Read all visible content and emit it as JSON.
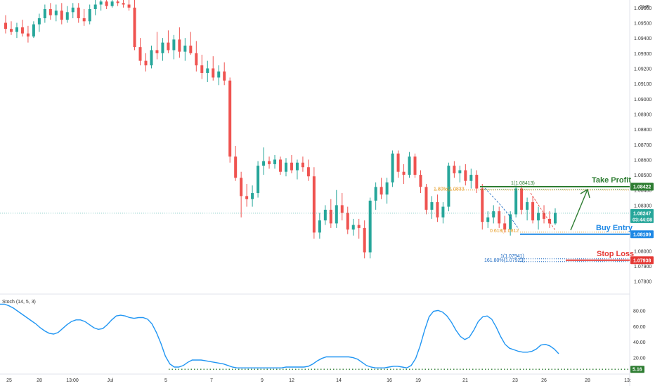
{
  "currency": "CHF",
  "colors": {
    "up": "#26a69a",
    "down": "#ef5350",
    "take_profit": "#2e7d32",
    "buy_entry": "#1e88e5",
    "stop_loss": "#e53935",
    "stoch_line": "#2196f3",
    "current_price": "#26a69a",
    "fib_orange": "#e69a1f",
    "fib_blue": "#1565c0"
  },
  "price_axis": {
    "ticks": [
      "1.09600",
      "1.09500",
      "1.09400",
      "1.09300",
      "1.09200",
      "1.09100",
      "1.09000",
      "1.08900",
      "1.08800",
      "1.08700",
      "1.08600",
      "1.08500",
      "1.08400",
      "1.08300",
      "1.08200",
      "1.08100",
      "1.08000",
      "1.07900",
      "1.07800"
    ]
  },
  "time_axis": {
    "labels": [
      "25",
      "28",
      "13:00",
      "Jul",
      "5",
      "7",
      "9",
      "12",
      "14",
      "16",
      "19",
      "21",
      "23",
      "26",
      "28",
      "13:"
    ]
  },
  "levels": {
    "take_profit": {
      "label": "Take Profit",
      "price": "1.08422"
    },
    "buy_entry": {
      "label": "Buy Entry",
      "price": "1.08109"
    },
    "stop_loss": {
      "label": "Stop Loss",
      "price": "1.07938"
    },
    "current": {
      "price": "1.08247",
      "countdown": "03:44:08"
    }
  },
  "fib_labels": {
    "tp_fib": "1(1.08413)",
    "orange_fib": "1.80%(1.0833",
    "entry_fib": "0.618(1.0812",
    "sl_fib_top": "1(1.07941)",
    "sl_fib": "161.80%(1.07923)"
  },
  "stochastic": {
    "title": "Stoch (14, 5, 3)",
    "ticks": [
      "80.00",
      "60.00",
      "40.00",
      "20.00"
    ],
    "current": "5.16",
    "range": [
      0,
      100
    ]
  },
  "chart_data": {
    "type": "candlestick",
    "title": "",
    "ylim": [
      1.0772,
      1.0965
    ],
    "candles": [
      {
        "o": 1.095,
        "h": 1.0955,
        "l": 1.0943,
        "c": 1.0946
      },
      {
        "o": 1.0946,
        "h": 1.0951,
        "l": 1.0942,
        "c": 1.0944
      },
      {
        "o": 1.0944,
        "h": 1.095,
        "l": 1.094,
        "c": 1.0947
      },
      {
        "o": 1.0947,
        "h": 1.0952,
        "l": 1.0941,
        "c": 1.0943
      },
      {
        "o": 1.0943,
        "h": 1.0948,
        "l": 1.0937,
        "c": 1.0941
      },
      {
        "o": 1.0941,
        "h": 1.0951,
        "l": 1.094,
        "c": 1.0949
      },
      {
        "o": 1.0949,
        "h": 1.0956,
        "l": 1.0944,
        "c": 1.0953
      },
      {
        "o": 1.0953,
        "h": 1.0962,
        "l": 1.095,
        "c": 1.0959
      },
      {
        "o": 1.0959,
        "h": 1.0963,
        "l": 1.0952,
        "c": 1.0955
      },
      {
        "o": 1.0955,
        "h": 1.0962,
        "l": 1.0951,
        "c": 1.0958
      },
      {
        "o": 1.0958,
        "h": 1.0963,
        "l": 1.0949,
        "c": 1.0952
      },
      {
        "o": 1.0952,
        "h": 1.0961,
        "l": 1.095,
        "c": 1.0957
      },
      {
        "o": 1.0957,
        "h": 1.0963,
        "l": 1.0953,
        "c": 1.096
      },
      {
        "o": 1.096,
        "h": 1.0963,
        "l": 1.095,
        "c": 1.0953
      },
      {
        "o": 1.0953,
        "h": 1.0959,
        "l": 1.0948,
        "c": 1.0951
      },
      {
        "o": 1.0951,
        "h": 1.0962,
        "l": 1.0949,
        "c": 1.0959
      },
      {
        "o": 1.0959,
        "h": 1.0966,
        "l": 1.0955,
        "c": 1.0962
      },
      {
        "o": 1.0962,
        "h": 1.0966,
        "l": 1.0958,
        "c": 1.0964
      },
      {
        "o": 1.0964,
        "h": 1.0966,
        "l": 1.0959,
        "c": 1.0961
      },
      {
        "o": 1.0961,
        "h": 1.0966,
        "l": 1.096,
        "c": 1.0964
      },
      {
        "o": 1.0964,
        "h": 1.0966,
        "l": 1.0961,
        "c": 1.0963
      },
      {
        "o": 1.0963,
        "h": 1.0966,
        "l": 1.096,
        "c": 1.0962
      },
      {
        "o": 1.0962,
        "h": 1.0966,
        "l": 1.0958,
        "c": 1.096
      },
      {
        "o": 1.096,
        "h": 1.0966,
        "l": 1.0932,
        "c": 1.0934
      },
      {
        "o": 1.0934,
        "h": 1.094,
        "l": 1.0922,
        "c": 1.0925
      },
      {
        "o": 1.0925,
        "h": 1.093,
        "l": 1.0918,
        "c": 1.0922
      },
      {
        "o": 1.0922,
        "h": 1.0935,
        "l": 1.092,
        "c": 1.0932
      },
      {
        "o": 1.0932,
        "h": 1.0944,
        "l": 1.0926,
        "c": 1.093
      },
      {
        "o": 1.093,
        "h": 1.094,
        "l": 1.0925,
        "c": 1.0937
      },
      {
        "o": 1.0937,
        "h": 1.0945,
        "l": 1.093,
        "c": 1.0932
      },
      {
        "o": 1.0932,
        "h": 1.0942,
        "l": 1.0926,
        "c": 1.0939
      },
      {
        "o": 1.0939,
        "h": 1.0947,
        "l": 1.0927,
        "c": 1.0931
      },
      {
        "o": 1.0931,
        "h": 1.094,
        "l": 1.0925,
        "c": 1.0935
      },
      {
        "o": 1.0935,
        "h": 1.0944,
        "l": 1.0929,
        "c": 1.093
      },
      {
        "o": 1.093,
        "h": 1.0938,
        "l": 1.0918,
        "c": 1.0922
      },
      {
        "o": 1.0922,
        "h": 1.0929,
        "l": 1.0913,
        "c": 1.0917
      },
      {
        "o": 1.0917,
        "h": 1.0925,
        "l": 1.0911,
        "c": 1.092
      },
      {
        "o": 1.092,
        "h": 1.0928,
        "l": 1.0912,
        "c": 1.0914
      },
      {
        "o": 1.0914,
        "h": 1.0922,
        "l": 1.0909,
        "c": 1.0918
      },
      {
        "o": 1.0918,
        "h": 1.0924,
        "l": 1.0909,
        "c": 1.0912
      },
      {
        "o": 1.0912,
        "h": 1.0914,
        "l": 1.0858,
        "c": 1.0862
      },
      {
        "o": 1.0862,
        "h": 1.0869,
        "l": 1.0846,
        "c": 1.0848
      },
      {
        "o": 1.0848,
        "h": 1.0852,
        "l": 1.0822,
        "c": 1.0836
      },
      {
        "o": 1.0836,
        "h": 1.0844,
        "l": 1.0829,
        "c": 1.0834
      },
      {
        "o": 1.0834,
        "h": 1.0843,
        "l": 1.0829,
        "c": 1.0838
      },
      {
        "o": 1.0838,
        "h": 1.0859,
        "l": 1.0835,
        "c": 1.0856
      },
      {
        "o": 1.0856,
        "h": 1.0868,
        "l": 1.085,
        "c": 1.0859
      },
      {
        "o": 1.0859,
        "h": 1.0862,
        "l": 1.0854,
        "c": 1.0857
      },
      {
        "o": 1.0857,
        "h": 1.0863,
        "l": 1.0854,
        "c": 1.086
      },
      {
        "o": 1.086,
        "h": 1.0862,
        "l": 1.085,
        "c": 1.0852
      },
      {
        "o": 1.0852,
        "h": 1.0861,
        "l": 1.0849,
        "c": 1.0858
      },
      {
        "o": 1.0858,
        "h": 1.0863,
        "l": 1.0851,
        "c": 1.0853
      },
      {
        "o": 1.0853,
        "h": 1.086,
        "l": 1.0847,
        "c": 1.0858
      },
      {
        "o": 1.0858,
        "h": 1.0862,
        "l": 1.0852,
        "c": 1.0855
      },
      {
        "o": 1.0855,
        "h": 1.086,
        "l": 1.0846,
        "c": 1.0849
      },
      {
        "o": 1.0849,
        "h": 1.0855,
        "l": 1.0808,
        "c": 1.0812
      },
      {
        "o": 1.0812,
        "h": 1.0825,
        "l": 1.0808,
        "c": 1.082
      },
      {
        "o": 1.082,
        "h": 1.083,
        "l": 1.0817,
        "c": 1.0827
      },
      {
        "o": 1.0827,
        "h": 1.0834,
        "l": 1.0815,
        "c": 1.0818
      },
      {
        "o": 1.0818,
        "h": 1.084,
        "l": 1.0815,
        "c": 1.083
      },
      {
        "o": 1.083,
        "h": 1.0838,
        "l": 1.082,
        "c": 1.0825
      },
      {
        "o": 1.0825,
        "h": 1.0829,
        "l": 1.0811,
        "c": 1.0814
      },
      {
        "o": 1.0814,
        "h": 1.0821,
        "l": 1.081,
        "c": 1.0817
      },
      {
        "o": 1.0817,
        "h": 1.0821,
        "l": 1.0808,
        "c": 1.0815
      },
      {
        "o": 1.0815,
        "h": 1.082,
        "l": 1.0795,
        "c": 1.0799
      },
      {
        "o": 1.0799,
        "h": 1.0835,
        "l": 1.0795,
        "c": 1.0833
      },
      {
        "o": 1.0833,
        "h": 1.0845,
        "l": 1.0827,
        "c": 1.0842
      },
      {
        "o": 1.0842,
        "h": 1.0848,
        "l": 1.0834,
        "c": 1.0837
      },
      {
        "o": 1.0837,
        "h": 1.0848,
        "l": 1.0831,
        "c": 1.0845
      },
      {
        "o": 1.0845,
        "h": 1.0866,
        "l": 1.0842,
        "c": 1.0864
      },
      {
        "o": 1.0864,
        "h": 1.0866,
        "l": 1.0848,
        "c": 1.0852
      },
      {
        "o": 1.0852,
        "h": 1.0857,
        "l": 1.0844,
        "c": 1.085
      },
      {
        "o": 1.085,
        "h": 1.0865,
        "l": 1.0848,
        "c": 1.0862
      },
      {
        "o": 1.0862,
        "h": 1.0864,
        "l": 1.0848,
        "c": 1.085
      },
      {
        "o": 1.085,
        "h": 1.0853,
        "l": 1.0838,
        "c": 1.0842
      },
      {
        "o": 1.0842,
        "h": 1.0844,
        "l": 1.0824,
        "c": 1.0827
      },
      {
        "o": 1.0827,
        "h": 1.0836,
        "l": 1.0821,
        "c": 1.0832
      },
      {
        "o": 1.0832,
        "h": 1.0837,
        "l": 1.0819,
        "c": 1.0822
      },
      {
        "o": 1.0822,
        "h": 1.0832,
        "l": 1.0818,
        "c": 1.0829
      },
      {
        "o": 1.0829,
        "h": 1.0858,
        "l": 1.0826,
        "c": 1.0856
      },
      {
        "o": 1.0856,
        "h": 1.0859,
        "l": 1.0848,
        "c": 1.0851
      },
      {
        "o": 1.0851,
        "h": 1.0856,
        "l": 1.0845,
        "c": 1.0853
      },
      {
        "o": 1.0853,
        "h": 1.0857,
        "l": 1.0843,
        "c": 1.0846
      },
      {
        "o": 1.0846,
        "h": 1.0854,
        "l": 1.0841,
        "c": 1.085
      },
      {
        "o": 1.085,
        "h": 1.0853,
        "l": 1.0838,
        "c": 1.0841
      },
      {
        "o": 1.0841,
        "h": 1.0844,
        "l": 1.0814,
        "c": 1.0819
      },
      {
        "o": 1.0819,
        "h": 1.0826,
        "l": 1.0815,
        "c": 1.0822
      },
      {
        "o": 1.0822,
        "h": 1.083,
        "l": 1.0818,
        "c": 1.0826
      },
      {
        "o": 1.0826,
        "h": 1.0829,
        "l": 1.0815,
        "c": 1.0818
      },
      {
        "o": 1.0818,
        "h": 1.0823,
        "l": 1.0812,
        "c": 1.0814
      },
      {
        "o": 1.0814,
        "h": 1.0826,
        "l": 1.081,
        "c": 1.0824
      },
      {
        "o": 1.0824,
        "h": 1.0843,
        "l": 1.0822,
        "c": 1.0841
      },
      {
        "o": 1.0841,
        "h": 1.0843,
        "l": 1.0824,
        "c": 1.0827
      },
      {
        "o": 1.0827,
        "h": 1.0835,
        "l": 1.082,
        "c": 1.0832
      },
      {
        "o": 1.0832,
        "h": 1.0836,
        "l": 1.0818,
        "c": 1.082
      },
      {
        "o": 1.082,
        "h": 1.0829,
        "l": 1.0814,
        "c": 1.0825
      },
      {
        "o": 1.0825,
        "h": 1.083,
        "l": 1.0818,
        "c": 1.0821
      },
      {
        "o": 1.0821,
        "h": 1.0826,
        "l": 1.0815,
        "c": 1.0818
      },
      {
        "o": 1.0818,
        "h": 1.0828,
        "l": 1.0817,
        "c": 1.0825
      }
    ],
    "stochastic_k": [
      88,
      88,
      86,
      83,
      79,
      75,
      71,
      67,
      63,
      58,
      54,
      51,
      50,
      52,
      57,
      62,
      66,
      68,
      68,
      66,
      62,
      58,
      56,
      57,
      62,
      68,
      73,
      74,
      73,
      71,
      70,
      71,
      71,
      69,
      63,
      52,
      38,
      22,
      12,
      8,
      8,
      10,
      14,
      17,
      17,
      17,
      16,
      15,
      14,
      13,
      12,
      10,
      8,
      7,
      7,
      7,
      7,
      7,
      7,
      7,
      7,
      7,
      7,
      7,
      8,
      8,
      8,
      8,
      8,
      9,
      12,
      16,
      19,
      21,
      21,
      21,
      21,
      21,
      21,
      20,
      18,
      14,
      10,
      8,
      7,
      7,
      7,
      8,
      9,
      9,
      8,
      7,
      10,
      19,
      35,
      55,
      72,
      79,
      80,
      78,
      73,
      65,
      55,
      47,
      43,
      46,
      55,
      66,
      72,
      73,
      69,
      59,
      47,
      37,
      32,
      30,
      28,
      27,
      27,
      28,
      31,
      36,
      37,
      35,
      31,
      25
    ]
  }
}
